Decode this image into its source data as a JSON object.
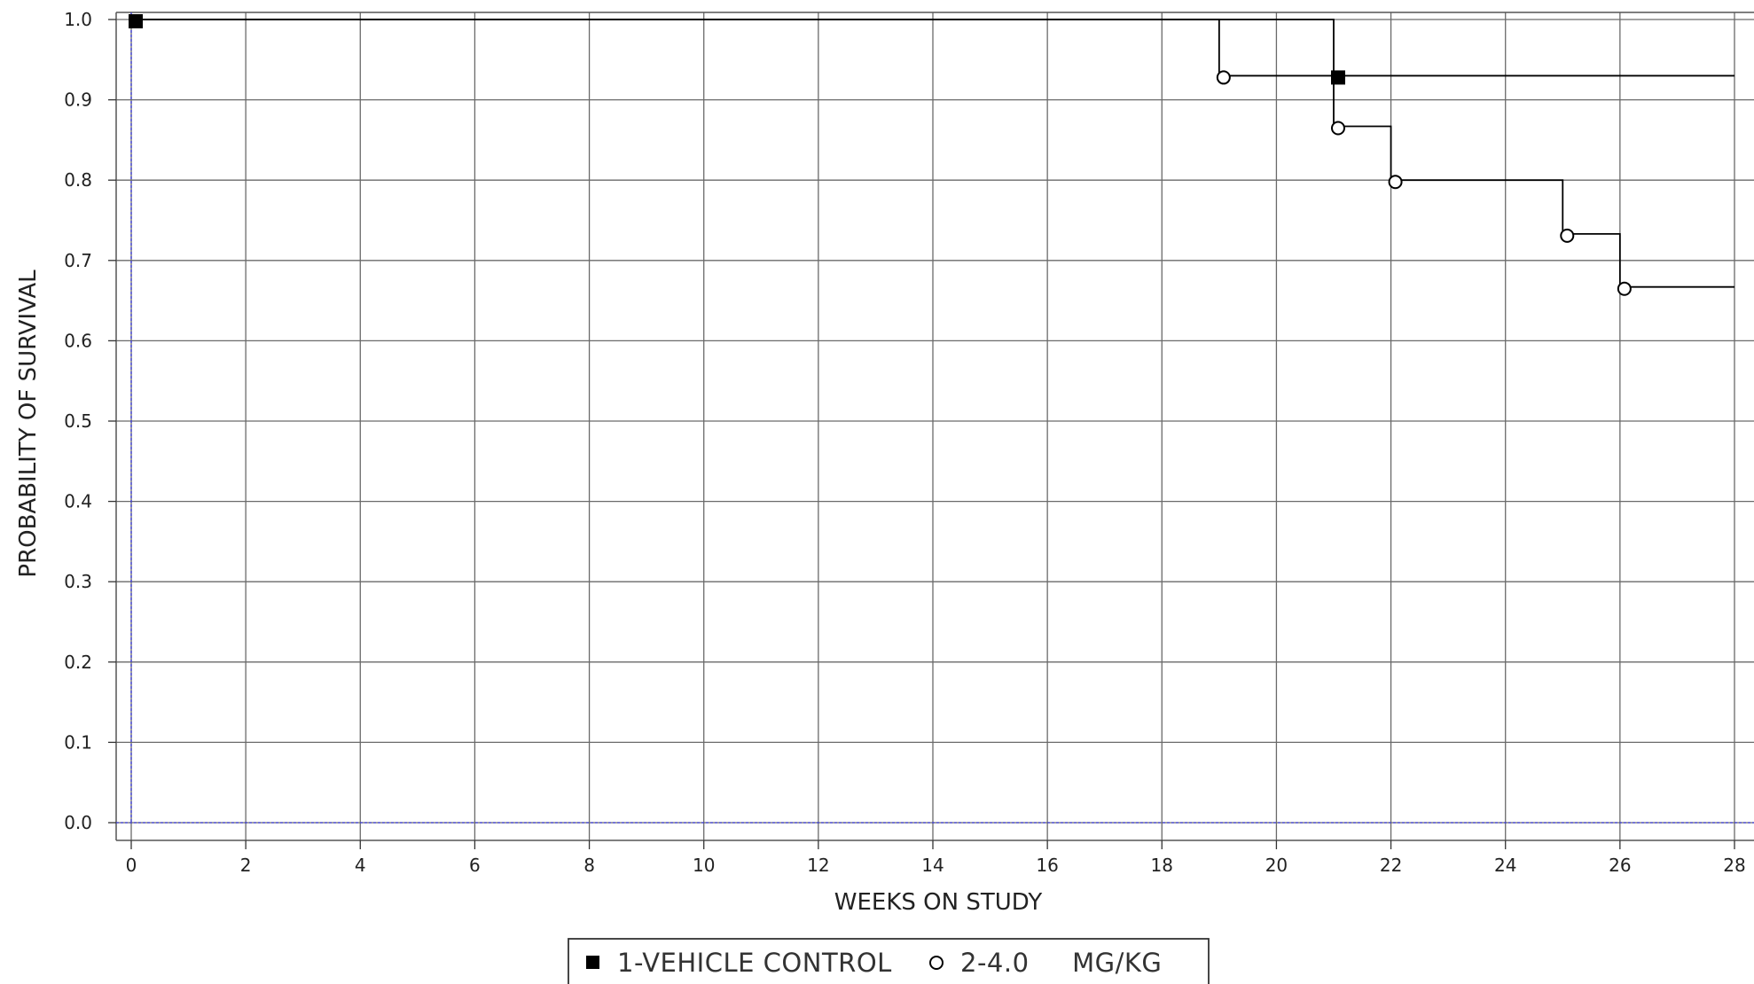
{
  "chart_data": {
    "type": "line",
    "subtype": "kaplan-meier step",
    "title": "",
    "xlabel": "WEEKS ON STUDY",
    "ylabel": "PROBABILITY OF SURVIVAL",
    "xlim": [
      0,
      28
    ],
    "ylim": [
      0.0,
      1.0
    ],
    "x_ticks": [
      "0",
      "2",
      "4",
      "6",
      "8",
      "10",
      "12",
      "14",
      "16",
      "18",
      "20",
      "22",
      "24",
      "26",
      "28"
    ],
    "y_ticks": [
      "0.0",
      "0.1",
      "0.2",
      "0.3",
      "0.4",
      "0.5",
      "0.6",
      "0.7",
      "0.8",
      "0.9",
      "1.0"
    ],
    "grid": true,
    "legend_position": "bottom-center",
    "series": [
      {
        "name": "1-VEHICLE CONTROL",
        "marker": "filled-square",
        "color": "#000000",
        "steps": [
          [
            0,
            1.0
          ],
          [
            21,
            1.0
          ],
          [
            21,
            0.93
          ],
          [
            28,
            0.93
          ]
        ],
        "markers": [
          [
            0,
            1.0
          ],
          [
            21,
            0.93
          ]
        ]
      },
      {
        "name": "2-4.0     MG/KG",
        "marker": "open-circle",
        "color": "#000000",
        "steps": [
          [
            0,
            1.0
          ],
          [
            19,
            1.0
          ],
          [
            19,
            0.93
          ],
          [
            21,
            0.93
          ],
          [
            21,
            0.867
          ],
          [
            22,
            0.867
          ],
          [
            22,
            0.8
          ],
          [
            25,
            0.8
          ],
          [
            25,
            0.733
          ],
          [
            26,
            0.733
          ],
          [
            26,
            0.667
          ],
          [
            28,
            0.667
          ]
        ],
        "markers": [
          [
            19,
            0.93
          ],
          [
            21,
            0.867
          ],
          [
            22,
            0.8
          ],
          [
            25,
            0.733
          ],
          [
            26,
            0.667
          ]
        ]
      }
    ]
  }
}
